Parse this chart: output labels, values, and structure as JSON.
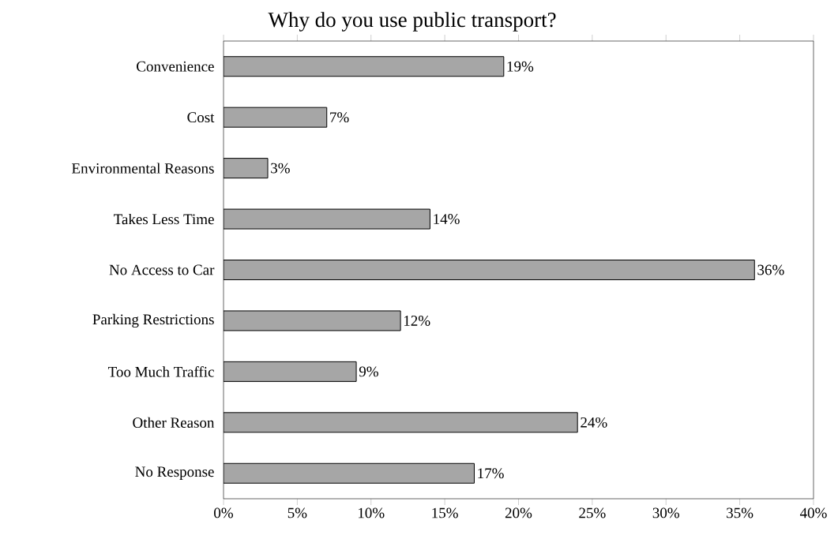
{
  "chart_data": {
    "type": "bar",
    "orientation": "horizontal",
    "title": "Why do you use public transport?",
    "categories": [
      "Convenience",
      "Cost",
      "Environmental Reasons",
      "Takes Less Time",
      "No Access to Car",
      "Parking Restrictions",
      "Too Much Traffic",
      "Other Reason",
      "No Response"
    ],
    "values": [
      19,
      7,
      3,
      14,
      36,
      12,
      9,
      24,
      17
    ],
    "value_labels": [
      "19%",
      "7%",
      "3%",
      "14%",
      "36%",
      "12%",
      "9%",
      "24%",
      "17%"
    ],
    "color": "#a6a6a6",
    "xlim": [
      0,
      40
    ],
    "xticks": [
      {
        "value": 0,
        "label": "0%"
      },
      {
        "value": 5,
        "label": "5%"
      },
      {
        "value": 10,
        "label": "10%"
      },
      {
        "value": 15,
        "label": "15%"
      },
      {
        "value": 20,
        "label": "20%"
      },
      {
        "value": 25,
        "label": "25%"
      },
      {
        "value": 30,
        "label": "30%"
      },
      {
        "value": 35,
        "label": "35%"
      },
      {
        "value": 40,
        "label": "40%"
      }
    ],
    "grid": false
  }
}
